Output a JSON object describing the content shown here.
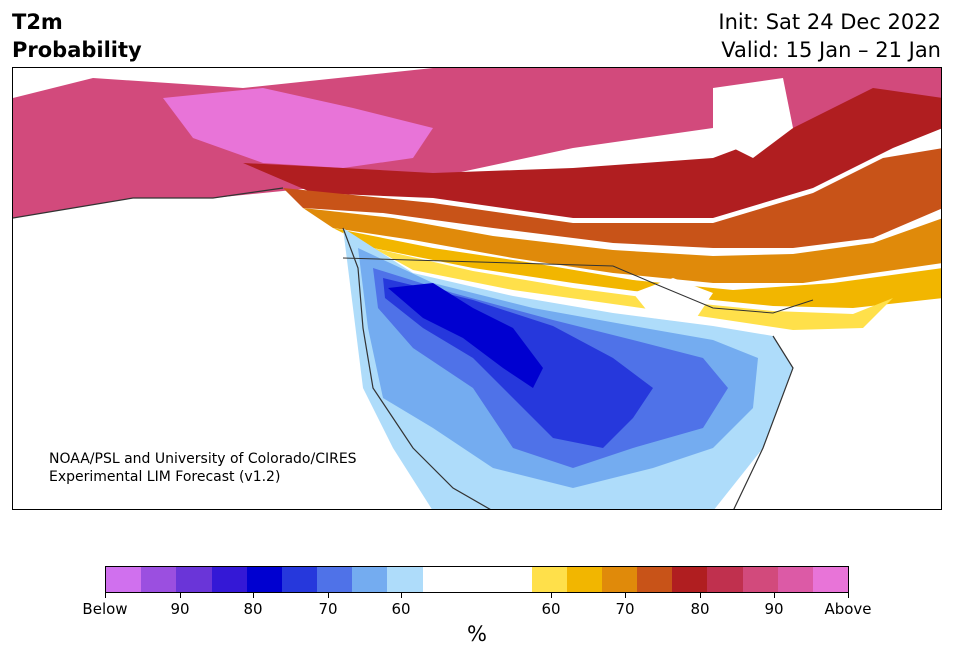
{
  "title": {
    "line1": "T2m",
    "line2": "Probability"
  },
  "init": {
    "line1": "Init: Sat 24 Dec 2022",
    "line2": "Valid: 15 Jan – 21 Jan"
  },
  "credit": {
    "line1": "NOAA/PSL and University of Colorado/CIRES",
    "line2": "Experimental LIM Forecast (v1.2)"
  },
  "colorbar": {
    "unit": "%",
    "ticks": [
      "Below",
      "90",
      "80",
      "70",
      "60",
      "60",
      "70",
      "80",
      "90",
      "Above"
    ],
    "below_colors": [
      "#d070ee",
      "#9b4fe0",
      "#6a35d8",
      "#3418d6",
      "#0000d0",
      "#2638dc",
      "#4f72e8",
      "#74acf0",
      "#aedcfa"
    ],
    "neutral_color": "#ffffff",
    "above_colors": [
      "#ffe04a",
      "#f2b600",
      "#e08a0a",
      "#c85318",
      "#b01e20",
      "#c0304e",
      "#d24a7c",
      "#dc5aa6",
      "#e874d8"
    ]
  }
}
